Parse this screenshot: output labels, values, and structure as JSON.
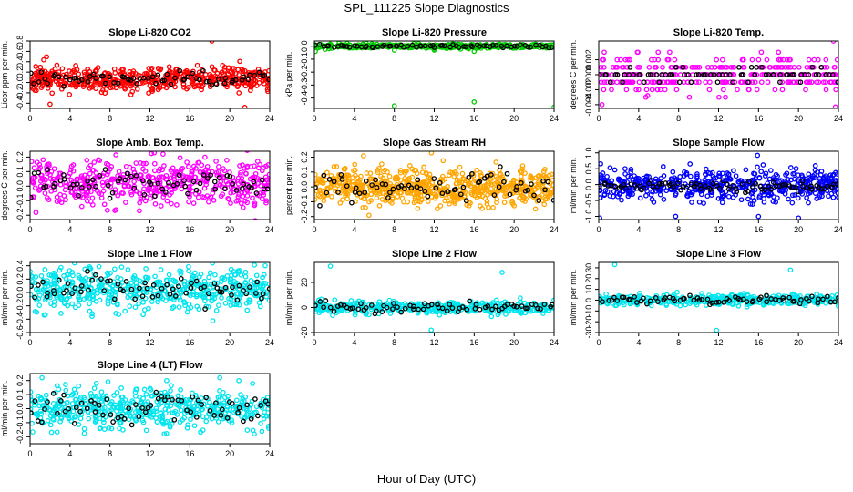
{
  "title": "SPL_111225  Slope Diagnostics",
  "xlabel": "Hour of Day (UTC)",
  "chart_data": [
    {
      "type": "scatter",
      "title": "Slope Li-820 CO2",
      "ylabel": "Licor ppm per min.",
      "xlim": [
        0,
        24
      ],
      "ylim": [
        -0.5,
        0.8
      ],
      "xticks": [
        0,
        4,
        8,
        12,
        16,
        20,
        24
      ],
      "yticks": [
        -0.4,
        -0.2,
        0,
        0.2,
        0.4,
        0.6,
        0.8
      ],
      "yticklabels": [
        "-0.4",
        "-0.2",
        "0.0",
        "0.2",
        "0.4",
        "0.6",
        "0.8"
      ],
      "color": "#ff0000",
      "grey_points": [
        {
          "x": 18.2,
          "y": 0.8
        },
        {
          "x": 2.0,
          "y": -0.42
        },
        {
          "x": 21.5,
          "y": -0.48
        }
      ],
      "series": [
        {
          "values": {
            "seed": 11,
            "n": 520,
            "center": 0.07,
            "spread": 0.12
          }
        },
        {
          "values": {
            "seed": 12,
            "n": 70,
            "center": 0.07,
            "spread": 0.08
          }
        }
      ]
    },
    {
      "type": "scatter",
      "title": "Slope Li-820 Pressure",
      "ylabel": "kPa per min.",
      "xlim": [
        0,
        24
      ],
      "ylim": [
        -0.48,
        0.04
      ],
      "xticks": [
        0,
        4,
        8,
        12,
        16,
        20,
        24
      ],
      "yticks": [
        -0.4,
        -0.3,
        -0.2,
        -0.1,
        0.0
      ],
      "yticklabels": [
        "-0.4",
        "-0.3",
        "-0.2",
        "-0.1",
        "0.0"
      ],
      "color": "#00cc00",
      "grey_points": [
        {
          "x": 8,
          "y": -0.46
        },
        {
          "x": 16,
          "y": -0.43
        },
        {
          "x": 24,
          "y": -0.47
        },
        {
          "x": 0.1,
          "y": -0.04
        },
        {
          "x": 8,
          "y": -0.03
        },
        {
          "x": 16,
          "y": -0.04
        },
        {
          "x": 12,
          "y": -0.03
        }
      ],
      "series": [
        {
          "values": {
            "seed": 21,
            "n": 400,
            "center": 0.0,
            "spread": 0.008
          }
        },
        {
          "values": {
            "seed": 22,
            "n": 70,
            "center": 0.0,
            "spread": 0.006
          }
        }
      ]
    },
    {
      "type": "scatter",
      "title": "Slope Li-820 Temp.",
      "ylabel": "degrees C per min.",
      "xlim": [
        0,
        24
      ],
      "ylim": [
        -0.0045,
        0.0045
      ],
      "xticks": [
        0,
        4,
        8,
        12,
        16,
        20,
        24
      ],
      "yticks": [
        -0.004,
        -0.002,
        0,
        0.002
      ],
      "yticklabels": [
        "-0.004",
        "-0.002",
        "0.000",
        "0.002"
      ],
      "color": "#ff00ff",
      "quantized": 0.001,
      "grey_points": [
        {
          "x": 23.5,
          "y": 0.0045
        },
        {
          "x": 23.7,
          "y": -0.0043
        },
        {
          "x": 4.9,
          "y": -0.0028
        }
      ],
      "series": [
        {
          "values": {
            "seed": 31,
            "n": 330,
            "center": 0.0,
            "spread": 0.0012
          }
        },
        {
          "values": {
            "seed": 32,
            "n": 70,
            "center": 0.0,
            "spread": 0.0006
          }
        }
      ]
    },
    {
      "type": "scatter",
      "title": "Slope Amb. Box Temp.",
      "ylabel": "degrees C per min.",
      "xlim": [
        0,
        24
      ],
      "ylim": [
        -0.23,
        0.24
      ],
      "xticks": [
        0,
        4,
        8,
        12,
        16,
        20,
        24
      ],
      "yticks": [
        -0.2,
        -0.1,
        0.0,
        0.1,
        0.2
      ],
      "yticklabels": [
        "-0.2",
        "-0.1",
        "0.0",
        "0.1",
        "0.2"
      ],
      "color": "#ff00ff",
      "grey_points": [],
      "series": [
        {
          "values": {
            "seed": 41,
            "n": 520,
            "center": 0.02,
            "spread": 0.08
          }
        },
        {
          "values": {
            "seed": 42,
            "n": 70,
            "center": 0.02,
            "spread": 0.05
          }
        }
      ]
    },
    {
      "type": "scatter",
      "title": "Slope Gas Stream RH",
      "ylabel": "percent per min.",
      "xlim": [
        0,
        24
      ],
      "ylim": [
        -0.22,
        0.24
      ],
      "xticks": [
        0,
        4,
        8,
        12,
        16,
        20,
        24
      ],
      "yticks": [
        -0.2,
        -0.1,
        0.0,
        0.1,
        0.2
      ],
      "yticklabels": [
        "-0.2",
        "-0.1",
        "0.0",
        "0.1",
        "0.2"
      ],
      "color": "#ffa500",
      "grey_points": [],
      "series": [
        {
          "values": {
            "seed": 51,
            "n": 650,
            "center": 0.0,
            "spread": 0.06
          }
        },
        {
          "values": {
            "seed": 52,
            "n": 70,
            "center": 0.0,
            "spread": 0.05
          }
        }
      ]
    },
    {
      "type": "scatter",
      "title": "Slope Sample Flow",
      "ylabel": "ml/min per min.",
      "xlim": [
        0,
        24
      ],
      "ylim": [
        -1.1,
        1.05
      ],
      "xticks": [
        0,
        4,
        8,
        12,
        16,
        20,
        24
      ],
      "yticks": [
        -1.0,
        -0.5,
        0.0,
        0.5,
        1.0
      ],
      "yticklabels": [
        "-1.0",
        "-0.5",
        "0.0",
        "0.5",
        "1.0"
      ],
      "color": "#0000ff",
      "grey_points": [
        {
          "x": 0.1,
          "y": -1.05
        },
        {
          "x": 7.7,
          "y": -1.0
        },
        {
          "x": 20.0,
          "y": -1.05
        },
        {
          "x": 15.9,
          "y": 0.92
        }
      ],
      "series": [
        {
          "values": {
            "seed": 61,
            "n": 520,
            "center": 0.0,
            "spread": 0.25
          }
        },
        {
          "values": {
            "seed": 62,
            "n": 80,
            "center": -0.05,
            "spread": 0.08
          }
        }
      ]
    },
    {
      "type": "scatter",
      "title": "Slope Line 1 Flow",
      "ylabel": "ml/min per min.",
      "xlim": [
        0,
        24
      ],
      "ylim": [
        -0.6,
        0.45
      ],
      "xticks": [
        0,
        4,
        8,
        12,
        16,
        20,
        24
      ],
      "yticks": [
        -0.6,
        -0.4,
        -0.2,
        0.0,
        0.2,
        0.4
      ],
      "yticklabels": [
        "-0.6",
        "-0.4",
        "-0.2",
        "0.0",
        "0.2",
        "0.4"
      ],
      "color": "#00e5ee",
      "grey_points": [],
      "series": [
        {
          "values": {
            "seed": 71,
            "n": 520,
            "center": 0.05,
            "spread": 0.15
          }
        },
        {
          "values": {
            "seed": 72,
            "n": 70,
            "center": 0.05,
            "spread": 0.09
          }
        }
      ]
    },
    {
      "type": "scatter",
      "title": "Slope Line 2 Flow",
      "ylabel": "ml/min per min.",
      "xlim": [
        0,
        24
      ],
      "ylim": [
        -20,
        36
      ],
      "xticks": [
        0,
        4,
        8,
        12,
        16,
        20,
        24
      ],
      "yticks": [
        -20,
        0,
        20
      ],
      "yticklabels": [
        "-20",
        "0",
        "20"
      ],
      "color": "#00e5ee",
      "grey_points": [
        {
          "x": 1.6,
          "y": 33
        },
        {
          "x": 11.7,
          "y": -18
        },
        {
          "x": 18.8,
          "y": 28
        }
      ],
      "series": [
        {
          "values": {
            "seed": 81,
            "n": 420,
            "center": 0.0,
            "spread": 2.5
          }
        },
        {
          "values": {
            "seed": 82,
            "n": 70,
            "center": 0.0,
            "spread": 2.0
          }
        }
      ]
    },
    {
      "type": "scatter",
      "title": "Slope Line 3 Flow",
      "ylabel": "ml/min per min.",
      "xlim": [
        0,
        24
      ],
      "ylim": [
        -30,
        35
      ],
      "xticks": [
        0,
        4,
        8,
        12,
        16,
        20,
        24
      ],
      "yticks": [
        -30,
        -20,
        -10,
        0,
        10,
        20,
        30
      ],
      "yticklabels": [
        "-30",
        "-20",
        "-10",
        "0",
        "10",
        "20",
        "30"
      ],
      "color": "#00e5ee",
      "grey_points": [
        {
          "x": 1.6,
          "y": 33
        },
        {
          "x": 11.8,
          "y": -28
        },
        {
          "x": 19.2,
          "y": 28
        }
      ],
      "series": [
        {
          "values": {
            "seed": 91,
            "n": 420,
            "center": 0.0,
            "spread": 2.5
          }
        },
        {
          "values": {
            "seed": 92,
            "n": 70,
            "center": 0.0,
            "spread": 2.0
          }
        }
      ]
    },
    {
      "type": "scatter",
      "title": "Slope Line 4 (LT) Flow",
      "ylabel": "ml/min per min.",
      "xlim": [
        0,
        24
      ],
      "ylim": [
        -0.25,
        0.25
      ],
      "xticks": [
        0,
        4,
        8,
        12,
        16,
        20,
        24
      ],
      "yticks": [
        -0.2,
        -0.1,
        0.0,
        0.1,
        0.2
      ],
      "yticklabels": [
        "-0.2",
        "-0.1",
        "0.0",
        "0.1",
        "0.2"
      ],
      "color": "#00e5ee",
      "grey_points": [
        {
          "x": 1.2,
          "y": 0.22
        },
        {
          "x": 19.0,
          "y": 0.22
        },
        {
          "x": 23.9,
          "y": -0.14
        }
      ],
      "series": [
        {
          "values": {
            "seed": 101,
            "n": 520,
            "center": 0.0,
            "spread": 0.07
          }
        },
        {
          "values": {
            "seed": 102,
            "n": 70,
            "center": 0.0,
            "spread": 0.05
          }
        }
      ]
    }
  ]
}
